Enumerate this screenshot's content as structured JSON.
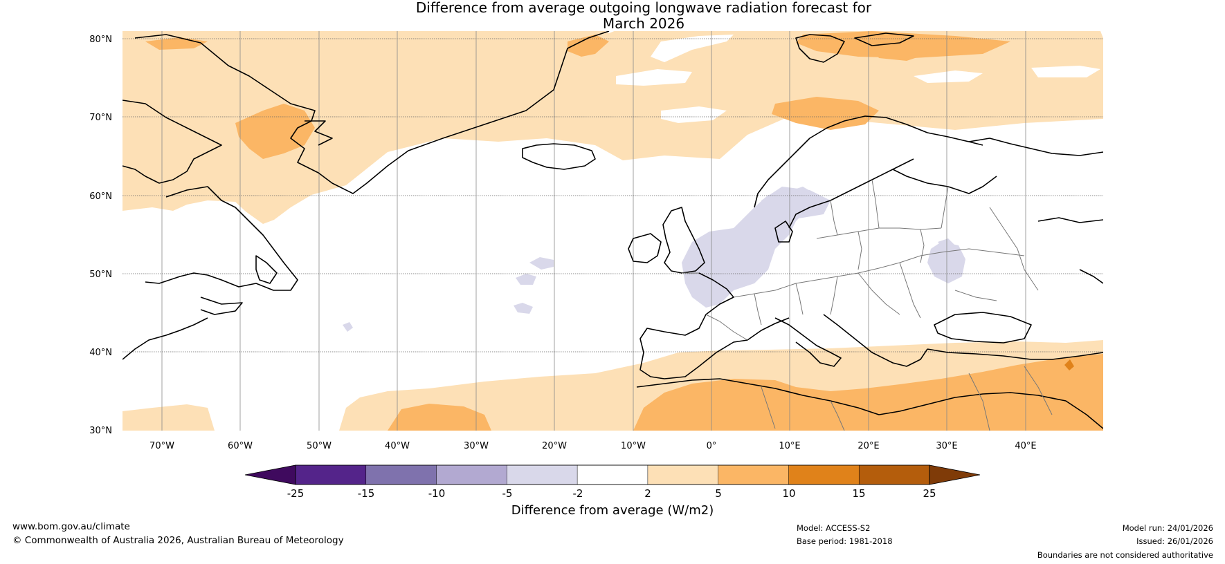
{
  "title": {
    "line1": "Difference from average outgoing longwave radiation forecast for",
    "line2": "March 2026"
  },
  "map": {
    "lat_labels": [
      "80°N",
      "70°N",
      "60°N",
      "50°N",
      "40°N",
      "30°N"
    ],
    "lon_labels": [
      "70°W",
      "60°W",
      "50°W",
      "40°W",
      "30°W",
      "20°W",
      "10°W",
      "0°",
      "10°E",
      "20°E",
      "30°E",
      "40°E"
    ],
    "extent": {
      "lon_min": -75,
      "lon_max": 50,
      "lat_min": 30,
      "lat_max": 81
    }
  },
  "colorbar": {
    "ticks": [
      "-25",
      "-15",
      "-10",
      "-5",
      "-2",
      "2",
      "5",
      "10",
      "15",
      "25"
    ],
    "colors": [
      "#3f0a5e",
      "#54248a",
      "#7f72ad",
      "#b2a9d1",
      "#d9d8ea",
      "#ffffff",
      "#fde0b6",
      "#fbb665",
      "#e0821a",
      "#b45d0c",
      "#7f3b08"
    ],
    "label": "Difference from average (W/m2)"
  },
  "footer": {
    "website": "www.bom.gov.au/climate",
    "copyright": "© Commonwealth of Australia 2026, Australian Bureau of Meteorology",
    "model": "Model: ACCESS-S2",
    "base_period": "Base period: 1981-2018",
    "model_run": "Model run: 24/01/2026",
    "issued": "Issued: 26/01/2026",
    "disclaimer": "Boundaries are not considered authoritative"
  }
}
